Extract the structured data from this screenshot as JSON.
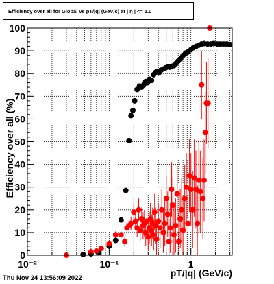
{
  "chart_data": {
    "type": "scatter",
    "title": "Efficiency over all for Global vs pT/|q| (GeV/c) at | η | <= 1.0",
    "xlabel": "pT/|q| (GeV/c)",
    "ylabel": "Efficiency over all (%)",
    "xscale": "log",
    "xlim": [
      0.01,
      3.2
    ],
    "ylim": [
      0,
      100
    ],
    "grid": true,
    "x_ticks": [
      {
        "value": 0.01,
        "label": "10⁻²"
      },
      {
        "value": 0.1,
        "label": "10⁻¹"
      },
      {
        "value": 1,
        "label": "1"
      }
    ],
    "y_ticks": [
      0,
      10,
      20,
      30,
      40,
      50,
      60,
      70,
      80,
      90,
      100
    ],
    "series": [
      {
        "color": "#000000",
        "points": [
          {
            "x": 0.048,
            "y": 0.3
          },
          {
            "x": 0.06,
            "y": 0.6
          },
          {
            "x": 0.075,
            "y": 1.3
          },
          {
            "x": 0.1,
            "y": 4.0
          },
          {
            "x": 0.12,
            "y": 6.5
          },
          {
            "x": 0.14,
            "y": 15.5
          },
          {
            "x": 0.16,
            "y": 28.5
          },
          {
            "x": 0.175,
            "y": 50.5
          },
          {
            "x": 0.185,
            "y": 61.5
          },
          {
            "x": 0.195,
            "y": 63.8
          },
          {
            "x": 0.205,
            "y": 68.0
          },
          {
            "x": 0.22,
            "y": 73.0
          },
          {
            "x": 0.235,
            "y": 74.5
          },
          {
            "x": 0.25,
            "y": 74.0
          },
          {
            "x": 0.265,
            "y": 75.0
          },
          {
            "x": 0.28,
            "y": 76.5
          },
          {
            "x": 0.295,
            "y": 76.0
          },
          {
            "x": 0.31,
            "y": 77.5
          },
          {
            "x": 0.33,
            "y": 77.0
          },
          {
            "x": 0.35,
            "y": 79.5
          },
          {
            "x": 0.37,
            "y": 80.5
          },
          {
            "x": 0.39,
            "y": 81.0
          },
          {
            "x": 0.41,
            "y": 80.5
          },
          {
            "x": 0.43,
            "y": 81.5
          },
          {
            "x": 0.46,
            "y": 82.0
          },
          {
            "x": 0.49,
            "y": 82.5
          },
          {
            "x": 0.52,
            "y": 83.0
          },
          {
            "x": 0.55,
            "y": 82.8
          },
          {
            "x": 0.58,
            "y": 83.2
          },
          {
            "x": 0.62,
            "y": 83.5
          },
          {
            "x": 0.66,
            "y": 84.5
          },
          {
            "x": 0.7,
            "y": 85.5
          },
          {
            "x": 0.75,
            "y": 86.5
          },
          {
            "x": 0.8,
            "y": 88.0
          },
          {
            "x": 0.86,
            "y": 89.0
          },
          {
            "x": 0.92,
            "y": 89.5
          },
          {
            "x": 1.0,
            "y": 90.5
          },
          {
            "x": 1.08,
            "y": 91.5
          },
          {
            "x": 1.16,
            "y": 92.0
          },
          {
            "x": 1.25,
            "y": 92.5
          },
          {
            "x": 1.35,
            "y": 93.0
          },
          {
            "x": 1.45,
            "y": 93.2
          },
          {
            "x": 1.6,
            "y": 93.0
          },
          {
            "x": 1.75,
            "y": 93.0
          },
          {
            "x": 1.9,
            "y": 93.2
          },
          {
            "x": 2.1,
            "y": 93.0
          },
          {
            "x": 2.3,
            "y": 93.0
          },
          {
            "x": 2.5,
            "y": 93.0
          },
          {
            "x": 2.75,
            "y": 93.0
          },
          {
            "x": 3.0,
            "y": 92.8
          }
        ]
      },
      {
        "color": "#ff0000",
        "points": [
          {
            "x": 0.03,
            "y": 0.0,
            "err": 0.3
          },
          {
            "x": 0.06,
            "y": 1.5,
            "err": 0.6
          },
          {
            "x": 0.07,
            "y": 1.8,
            "err": 0.6
          },
          {
            "x": 0.08,
            "y": 3.0,
            "err": 0.8
          },
          {
            "x": 0.1,
            "y": 5.0,
            "err": 1.0
          },
          {
            "x": 0.12,
            "y": 9.0,
            "err": 1.5
          },
          {
            "x": 0.14,
            "y": 9.0,
            "err": 1.5
          },
          {
            "x": 0.155,
            "y": 6.0,
            "err": 2.0
          },
          {
            "x": 0.165,
            "y": 12.0,
            "err": 2.5
          },
          {
            "x": 0.175,
            "y": 13.0,
            "err": 3.0
          },
          {
            "x": 0.185,
            "y": 14.0,
            "err": 3.0
          },
          {
            "x": 0.2,
            "y": 19.0,
            "err": 4.0
          },
          {
            "x": 0.21,
            "y": 15.0,
            "err": 4.0
          },
          {
            "x": 0.22,
            "y": 12.0,
            "err": 4.0
          },
          {
            "x": 0.23,
            "y": 20.0,
            "err": 5.0
          },
          {
            "x": 0.24,
            "y": 11.0,
            "err": 5.0
          },
          {
            "x": 0.25,
            "y": 16.0,
            "err": 5.0
          },
          {
            "x": 0.26,
            "y": 13.0,
            "err": 6.0
          },
          {
            "x": 0.27,
            "y": 14.0,
            "err": 6.0
          },
          {
            "x": 0.28,
            "y": 10.0,
            "err": 6.0
          },
          {
            "x": 0.29,
            "y": 15.0,
            "err": 6.0
          },
          {
            "x": 0.3,
            "y": 8.0,
            "err": 6.0
          },
          {
            "x": 0.31,
            "y": 12.0,
            "err": 7.0
          },
          {
            "x": 0.32,
            "y": 16.0,
            "err": 7.0
          },
          {
            "x": 0.33,
            "y": 11.0,
            "err": 7.0
          },
          {
            "x": 0.34,
            "y": 14.0,
            "err": 7.0
          },
          {
            "x": 0.35,
            "y": 9.0,
            "err": 7.0
          },
          {
            "x": 0.36,
            "y": 19.0,
            "err": 8.0
          },
          {
            "x": 0.37,
            "y": 13.0,
            "err": 8.0
          },
          {
            "x": 0.38,
            "y": 7.0,
            "err": 8.0
          },
          {
            "x": 0.4,
            "y": 15.0,
            "err": 8.0
          },
          {
            "x": 0.42,
            "y": 12.0,
            "err": 9.0
          },
          {
            "x": 0.44,
            "y": 20.0,
            "err": 9.0
          },
          {
            "x": 0.46,
            "y": 10.0,
            "err": 9.0
          },
          {
            "x": 0.48,
            "y": 14.0,
            "err": 10.0
          },
          {
            "x": 0.5,
            "y": 25.0,
            "err": 10.0
          },
          {
            "x": 0.52,
            "y": 18.0,
            "err": 10.0
          },
          {
            "x": 0.54,
            "y": 6.0,
            "err": 10.0
          },
          {
            "x": 0.56,
            "y": 12.0,
            "err": 11.0
          },
          {
            "x": 0.58,
            "y": 29.0,
            "err": 12.0
          },
          {
            "x": 0.6,
            "y": 22.0,
            "err": 12.0
          },
          {
            "x": 0.62,
            "y": 9.0,
            "err": 12.0
          },
          {
            "x": 0.65,
            "y": 13.0,
            "err": 12.0
          },
          {
            "x": 0.68,
            "y": 27.0,
            "err": 13.0
          },
          {
            "x": 0.71,
            "y": 6.0,
            "err": 13.0
          },
          {
            "x": 0.74,
            "y": 16.0,
            "err": 13.0
          },
          {
            "x": 0.77,
            "y": 20.0,
            "err": 14.0
          },
          {
            "x": 0.8,
            "y": 11.0,
            "err": 14.0
          },
          {
            "x": 0.84,
            "y": 25.0,
            "err": 15.0
          },
          {
            "x": 0.88,
            "y": 30.0,
            "err": 15.0
          },
          {
            "x": 0.92,
            "y": 14.0,
            "err": 15.0
          },
          {
            "x": 0.96,
            "y": 35.0,
            "err": 16.0
          },
          {
            "x": 1.0,
            "y": 29.0,
            "err": 16.0
          },
          {
            "x": 1.05,
            "y": 20.0,
            "err": 17.0
          },
          {
            "x": 1.1,
            "y": 34.0,
            "err": 17.0
          },
          {
            "x": 1.15,
            "y": 29.0,
            "err": 17.0
          },
          {
            "x": 1.2,
            "y": 14.0,
            "err": 17.0
          },
          {
            "x": 1.25,
            "y": 33.0,
            "err": 18.0
          },
          {
            "x": 1.3,
            "y": 28.0,
            "err": 18.0
          },
          {
            "x": 1.35,
            "y": 75.0,
            "err": 15.0
          },
          {
            "x": 1.4,
            "y": 25.0,
            "err": 18.0
          },
          {
            "x": 1.45,
            "y": 33.0,
            "err": 18.0
          },
          {
            "x": 1.5,
            "y": 54.0,
            "err": 18.0
          },
          {
            "x": 1.55,
            "y": 67.0,
            "err": 18.0
          },
          {
            "x": 1.62,
            "y": 67.0,
            "err": 20.0
          },
          {
            "x": 1.7,
            "y": 100.0,
            "err": 0.0
          }
        ]
      }
    ]
  },
  "timestamp": "Thu Nov 24 13:56:09 2022"
}
